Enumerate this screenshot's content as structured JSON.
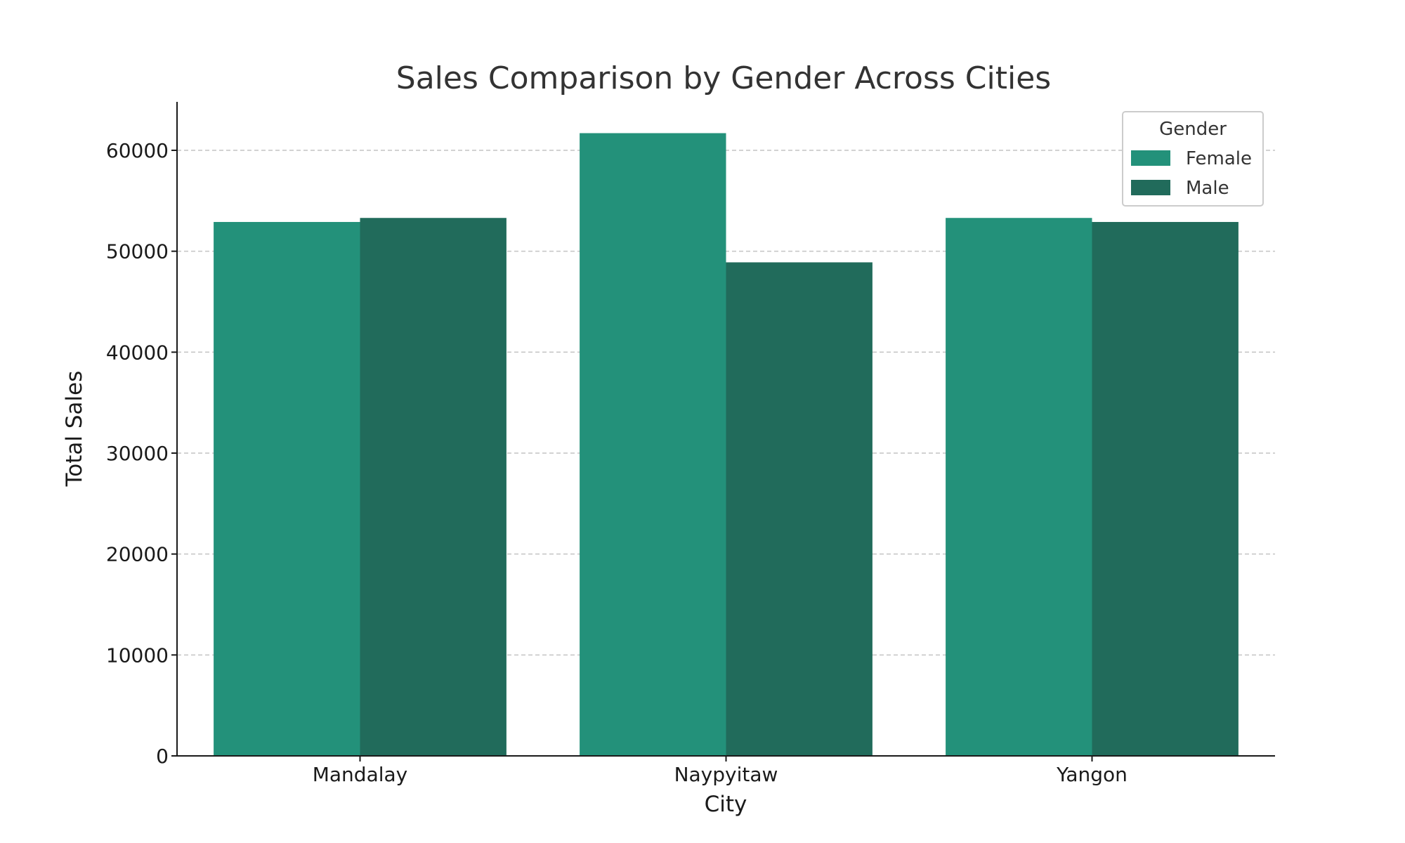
{
  "chart_data": {
    "type": "bar",
    "title": "Sales Comparison by Gender Across Cities",
    "xlabel": "City",
    "ylabel": "Total Sales",
    "categories": [
      "Mandalay",
      "Naypyitaw",
      "Yangon"
    ],
    "series": [
      {
        "name": "Female",
        "values": [
          52900,
          61700,
          53300
        ],
        "color": "#23917a"
      },
      {
        "name": "Male",
        "values": [
          53300,
          48900,
          52900
        ],
        "color": "#216b5b"
      }
    ],
    "ylim": [
      0,
      64800
    ],
    "yticks": [
      0,
      10000,
      20000,
      30000,
      40000,
      50000,
      60000
    ],
    "grid": true,
    "legend": {
      "title": "Gender",
      "position": "top-right"
    }
  }
}
